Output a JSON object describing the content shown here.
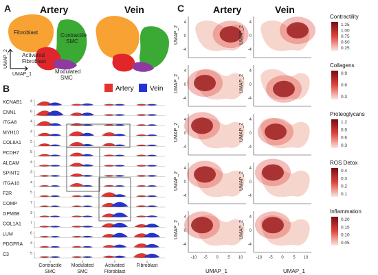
{
  "panels": {
    "a": "A",
    "b": "B",
    "c": "C"
  },
  "panel_a": {
    "titles": [
      "Artery",
      "Vein"
    ],
    "axis_x": "UMAP_1",
    "axis_y": "UMAP_2",
    "clusters": [
      {
        "name": "Fibroblast",
        "color": "#f7a233"
      },
      {
        "name": "Contractile SMC",
        "color": "#3aaa35"
      },
      {
        "name": "Activated Fibroblast",
        "color": "#e0262b"
      },
      {
        "name": "Modulated SMC",
        "color": "#8e3aa0"
      }
    ],
    "labels": {
      "fibroblast": "Fibroblast",
      "contractile": [
        "Contractile",
        "SMC"
      ],
      "activated": [
        "Activated",
        "Fibroblast"
      ],
      "modulated": [
        "Modulated",
        "SMC"
      ]
    }
  },
  "panel_b": {
    "legend": [
      {
        "name": "Artery",
        "color": "#e8322d"
      },
      {
        "name": "Vein",
        "color": "#2433d6"
      }
    ],
    "genes": [
      {
        "name": "KCNAB1",
        "ymax": "4"
      },
      {
        "name": "CNN1",
        "ymax": "6"
      },
      {
        "name": "ITGA8",
        "ymax": "4"
      },
      {
        "name": "MYH10",
        "ymax": "4"
      },
      {
        "name": "COL8A1",
        "ymax": "5"
      },
      {
        "name": "PCDH7",
        "ymax": "5"
      },
      {
        "name": "ALCAM",
        "ymax": "4"
      },
      {
        "name": "SPINT2",
        "ymax": "3"
      },
      {
        "name": "ITGA10",
        "ymax": "4"
      },
      {
        "name": "F2R",
        "ymax": "5"
      },
      {
        "name": "COMP",
        "ymax": "7"
      },
      {
        "name": "GPM6B",
        "ymax": "3"
      },
      {
        "name": "COL1A1",
        "ymax": "7"
      },
      {
        "name": "LUM",
        "ymax": "6"
      },
      {
        "name": "PDGFRA",
        "ymax": "4"
      },
      {
        "name": "C3",
        "ymax": "5"
      }
    ],
    "groups": [
      [
        "Contractile",
        "SMC"
      ],
      [
        "Modulated",
        "SMC"
      ],
      [
        "Activated",
        "Fibroblast"
      ],
      [
        "Fibroblast",
        ""
      ]
    ],
    "expression_levels": [
      [
        [
          0.7,
          0.5
        ],
        [
          0.2,
          0.3
        ],
        [
          0.1,
          0.1
        ],
        [
          0.05,
          0.05
        ]
      ],
      [
        [
          0.9,
          0.9
        ],
        [
          0.5,
          0.5
        ],
        [
          0.1,
          0.1
        ],
        [
          0.05,
          0.05
        ]
      ],
      [
        [
          0.8,
          0.4
        ],
        [
          0.4,
          0.2
        ],
        [
          0.1,
          0.05
        ],
        [
          0.05,
          0.05
        ]
      ],
      [
        [
          0.5,
          0.3
        ],
        [
          0.8,
          0.5
        ],
        [
          0.6,
          0.3
        ],
        [
          0.1,
          0.1
        ]
      ],
      [
        [
          0.4,
          0.2
        ],
        [
          0.7,
          0.3
        ],
        [
          0.5,
          0.2
        ],
        [
          0.1,
          0.1
        ]
      ],
      [
        [
          0.3,
          0.2
        ],
        [
          0.6,
          0.3
        ],
        [
          0.2,
          0.1
        ],
        [
          0.1,
          0.05
        ]
      ],
      [
        [
          0.2,
          0.1
        ],
        [
          0.6,
          0.3
        ],
        [
          0.1,
          0.1
        ],
        [
          0.05,
          0.05
        ]
      ],
      [
        [
          0.1,
          0.05
        ],
        [
          0.5,
          0.2
        ],
        [
          0.1,
          0.05
        ],
        [
          0.05,
          0.05
        ]
      ],
      [
        [
          0.1,
          0.05
        ],
        [
          0.6,
          0.2
        ],
        [
          0.2,
          0.1
        ],
        [
          0.05,
          0.05
        ]
      ],
      [
        [
          0.05,
          0.05
        ],
        [
          0.1,
          0.1
        ],
        [
          0.8,
          0.4
        ],
        [
          0.1,
          0.1
        ]
      ],
      [
        [
          0.05,
          0.05
        ],
        [
          0.1,
          0.1
        ],
        [
          0.7,
          0.9
        ],
        [
          0.2,
          0.2
        ]
      ],
      [
        [
          0.05,
          0.05
        ],
        [
          0.1,
          0.1
        ],
        [
          0.6,
          0.8
        ],
        [
          0.1,
          0.2
        ]
      ],
      [
        [
          0.05,
          0.05
        ],
        [
          0.1,
          0.2
        ],
        [
          0.7,
          0.8
        ],
        [
          0.5,
          0.6
        ]
      ],
      [
        [
          0.05,
          0.05
        ],
        [
          0.1,
          0.2
        ],
        [
          0.6,
          0.8
        ],
        [
          0.7,
          0.8
        ]
      ],
      [
        [
          0.05,
          0.05
        ],
        [
          0.05,
          0.1
        ],
        [
          0.4,
          0.5
        ],
        [
          0.7,
          0.6
        ]
      ],
      [
        [
          0.05,
          0.05
        ],
        [
          0.05,
          0.05
        ],
        [
          0.3,
          0.3
        ],
        [
          0.8,
          0.7
        ]
      ]
    ]
  },
  "panel_c": {
    "titles": [
      "Artery",
      "Vein"
    ],
    "axis_x": "UMAP_1",
    "axis_y": "UMAP_2",
    "x_ticks": [
      "-10",
      "-5",
      "0",
      "5",
      "10"
    ],
    "y_ticks": [
      "4",
      "0",
      "-4"
    ],
    "scores": [
      {
        "name": "Contractility",
        "ticks": [
          "1.25",
          "1.00",
          "0.75",
          "0.50",
          "0.25"
        ],
        "color_high": "#7a0c12",
        "color_low": "#fbe6e0"
      },
      {
        "name": "Collagens",
        "ticks": [
          "0.9",
          "0.6",
          "0.3"
        ],
        "color_high": "#7a0c12",
        "color_low": "#fbe6e0"
      },
      {
        "name": "Proteoglycans",
        "ticks": [
          "1.2",
          "0.9",
          "0.6",
          "0.3"
        ],
        "color_high": "#7a0c12",
        "color_low": "#fbe6e0"
      },
      {
        "name": "ROS Detox",
        "ticks": [
          "0.4",
          "0.3",
          "0.2",
          "0.1"
        ],
        "color_high": "#7a0c12",
        "color_low": "#fbe6e0"
      },
      {
        "name": "Inflammation",
        "ticks": [
          "0.20",
          "0.15",
          "0.10",
          "0.05"
        ],
        "color_high": "#7a0c12",
        "color_low": "#fbe6e0"
      }
    ]
  }
}
